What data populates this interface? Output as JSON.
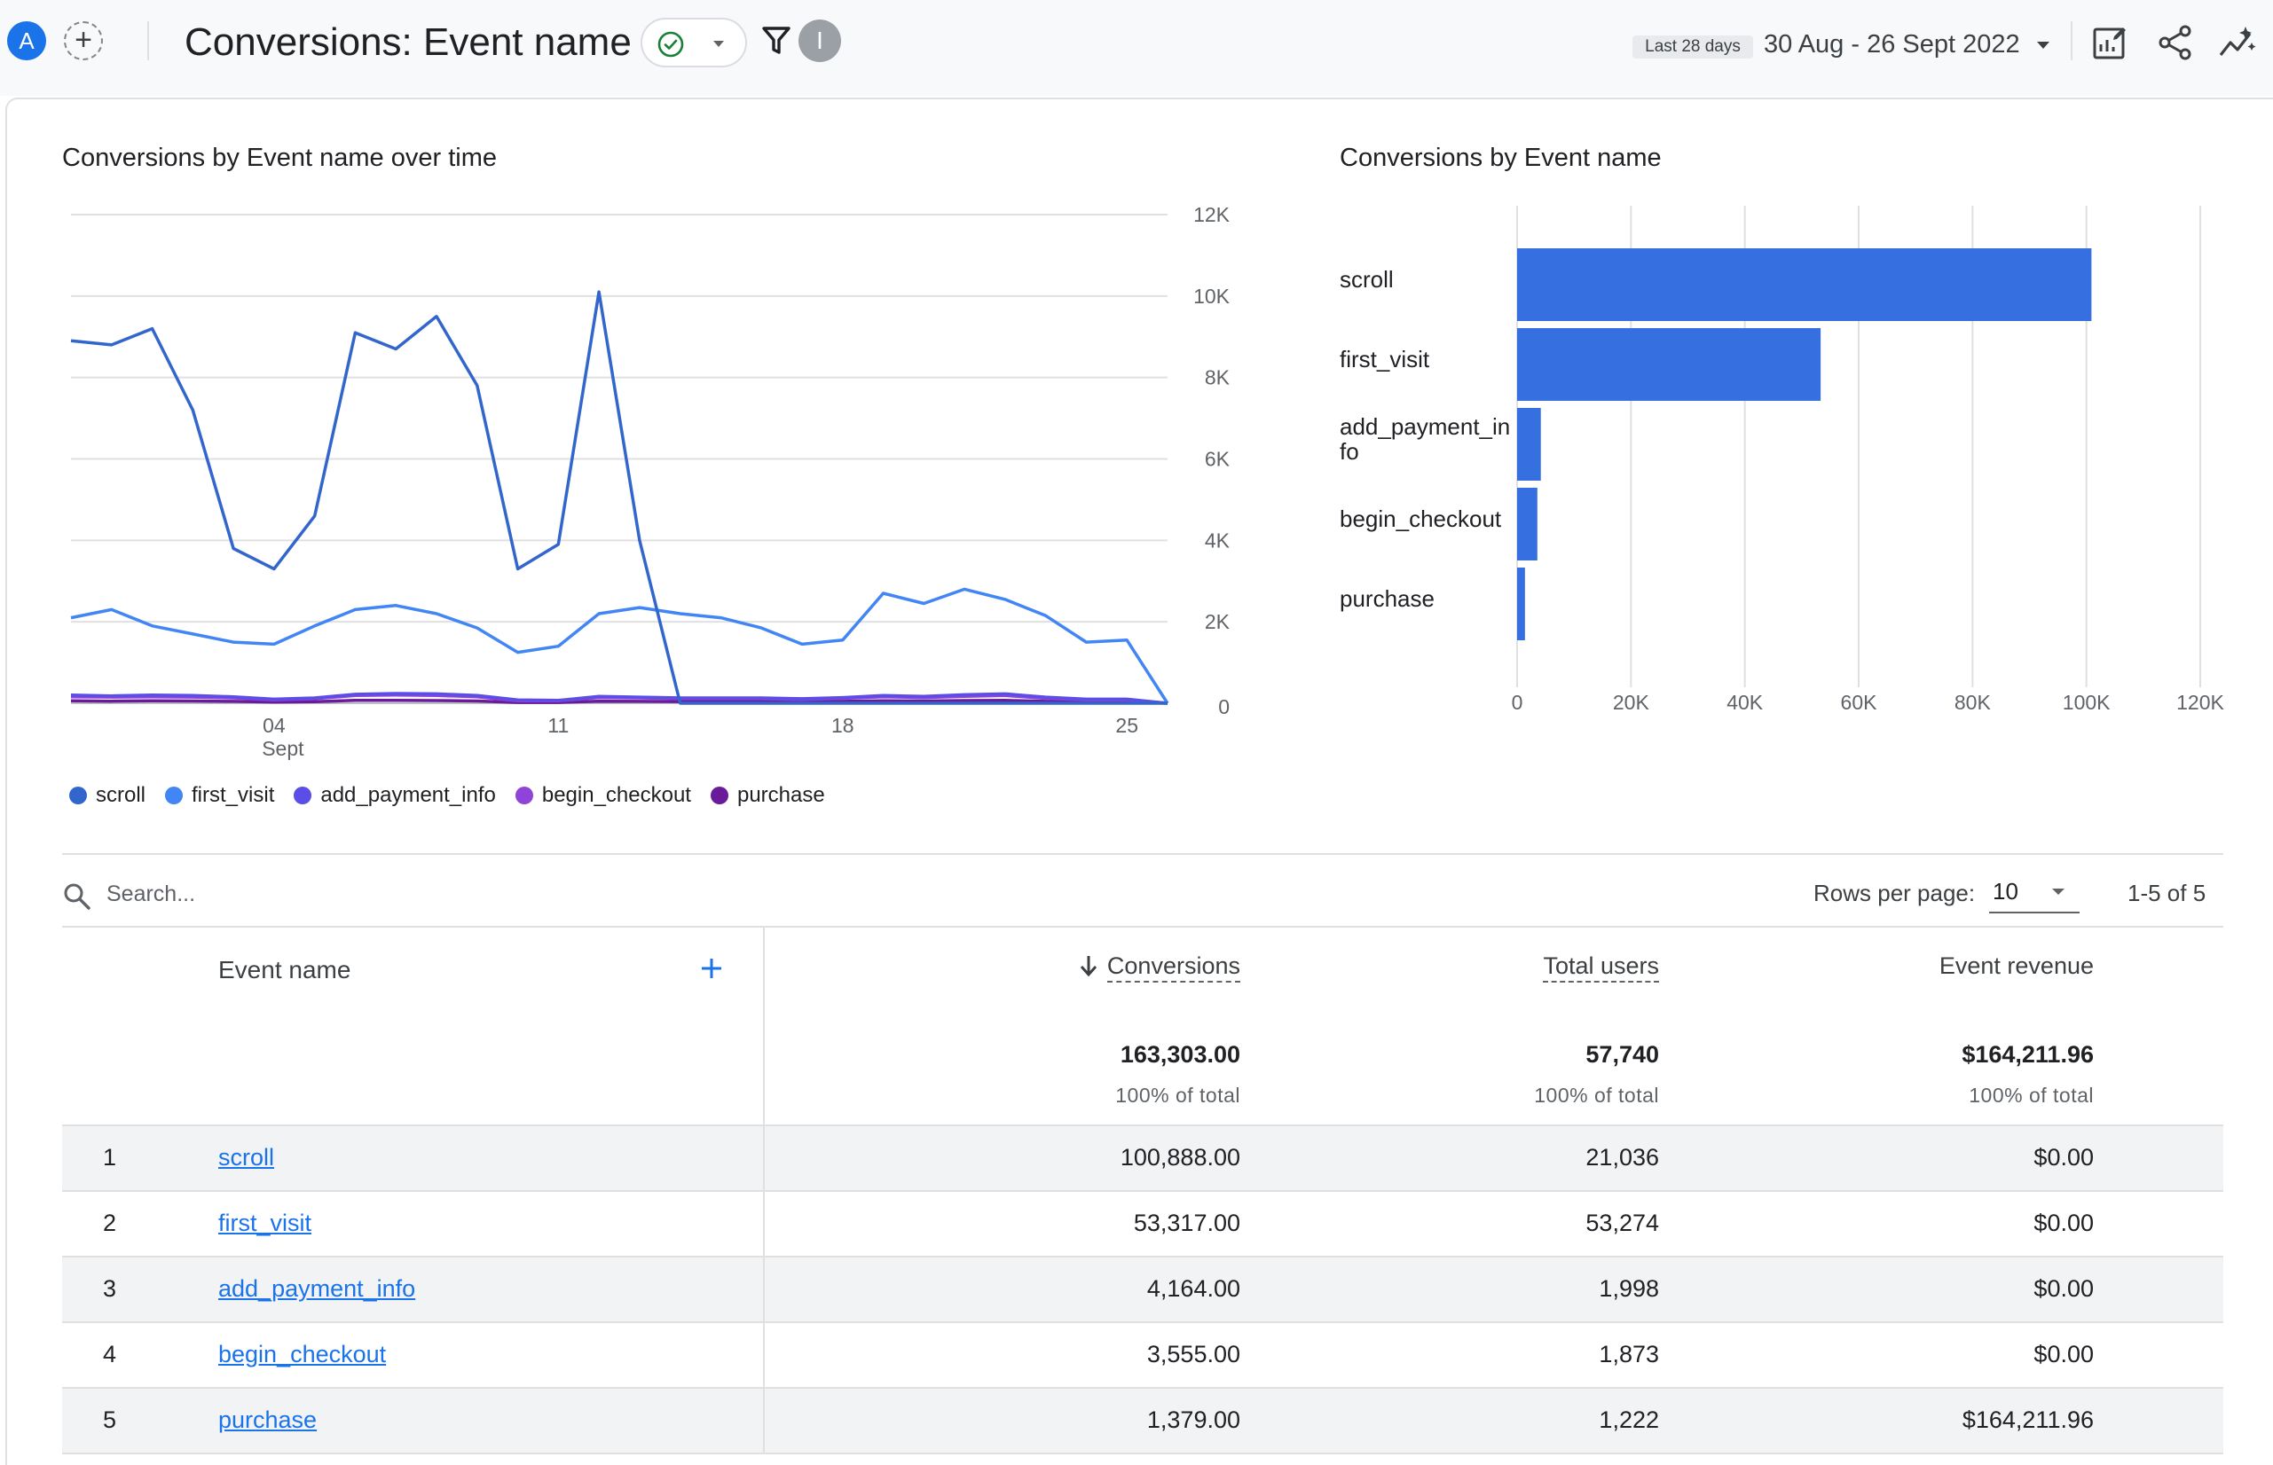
{
  "header": {
    "avatar_letter": "A",
    "compare_symbol": "+",
    "title": "Conversions: Event name",
    "filter_avatar_letter": "I",
    "date_label": "Last 28 days",
    "date_range": "30 Aug - 26 Sept 2022",
    "icons": [
      "check-circle-icon",
      "caret-down-icon",
      "filter-icon",
      "edit-report-icon",
      "share-icon",
      "insights-icon"
    ]
  },
  "line_chart": {
    "title": "Conversions by Event name over time",
    "y_ticks": [
      "12K",
      "10K",
      "8K",
      "6K",
      "4K",
      "2K",
      "0"
    ],
    "x_ticks": [
      "04",
      "11",
      "18",
      "25"
    ],
    "x_sub": "Sept",
    "legend": [
      "scroll",
      "first_visit",
      "add_payment_info",
      "begin_checkout",
      "purchase"
    ]
  },
  "bar_chart": {
    "title": "Conversions by Event name",
    "x_ticks": [
      "0",
      "20K",
      "40K",
      "60K",
      "80K",
      "100K",
      "120K"
    ],
    "category_labels": [
      [
        "scroll"
      ],
      [
        "first_visit"
      ],
      [
        "add_payment_in",
        "fo"
      ],
      [
        "begin_checkout"
      ],
      [
        "purchase"
      ]
    ]
  },
  "chart_data": [
    {
      "type": "line",
      "title": "Conversions by Event name over time",
      "x": [
        "30 Aug",
        "31 Aug",
        "01 Sept",
        "02 Sept",
        "03 Sept",
        "04 Sept",
        "05 Sept",
        "06 Sept",
        "07 Sept",
        "08 Sept",
        "09 Sept",
        "10 Sept",
        "11 Sept",
        "12 Sept",
        "13 Sept",
        "14 Sept",
        "15 Sept",
        "16 Sept",
        "17 Sept",
        "18 Sept",
        "19 Sept",
        "20 Sept",
        "21 Sept",
        "22 Sept",
        "23 Sept",
        "24 Sept",
        "25 Sept",
        "26 Sept"
      ],
      "ylim": [
        0,
        12000
      ],
      "series": [
        {
          "name": "scroll",
          "color": "#3366cc",
          "values": [
            8900,
            8800,
            9200,
            7200,
            3800,
            3300,
            4600,
            9100,
            8700,
            9500,
            7800,
            3300,
            3900,
            10100,
            4000,
            0,
            0,
            0,
            0,
            0,
            0,
            0,
            0,
            0,
            0,
            0,
            0,
            0
          ]
        },
        {
          "name": "first_visit",
          "color": "#4285f4",
          "values": [
            2100,
            2300,
            1900,
            1700,
            1500,
            1450,
            1900,
            2300,
            2400,
            2200,
            1850,
            1250,
            1400,
            2200,
            2350,
            2200,
            2100,
            1850,
            1450,
            1550,
            2700,
            2450,
            2800,
            2550,
            2150,
            1500,
            1550,
            0
          ]
        },
        {
          "name": "add_payment_info",
          "color": "#5b4de8",
          "values": [
            200,
            180,
            200,
            190,
            160,
            100,
            130,
            220,
            240,
            230,
            190,
            80,
            70,
            170,
            150,
            130,
            130,
            130,
            110,
            140,
            190,
            170,
            210,
            230,
            150,
            100,
            100,
            0
          ]
        },
        {
          "name": "begin_checkout",
          "color": "#8e44d8",
          "values": [
            160,
            150,
            160,
            150,
            130,
            80,
            110,
            190,
            200,
            190,
            160,
            60,
            60,
            140,
            130,
            110,
            110,
            110,
            90,
            120,
            160,
            140,
            170,
            190,
            120,
            80,
            80,
            0
          ]
        },
        {
          "name": "purchase",
          "color": "#6a1b9a",
          "values": [
            60,
            50,
            60,
            55,
            45,
            30,
            40,
            70,
            70,
            65,
            55,
            20,
            20,
            50,
            45,
            40,
            40,
            40,
            35,
            45,
            60,
            55,
            65,
            70,
            45,
            30,
            30,
            0
          ]
        }
      ]
    },
    {
      "type": "bar",
      "orientation": "horizontal",
      "title": "Conversions by Event name",
      "categories": [
        "scroll",
        "first_visit",
        "add_payment_info",
        "begin_checkout",
        "purchase"
      ],
      "values": [
        100888,
        53317,
        4164,
        3555,
        1379
      ],
      "xlim": [
        0,
        120000
      ],
      "color": "#3670e0"
    }
  ],
  "table": {
    "search_placeholder": "Search...",
    "rows_per_page_label": "Rows per page:",
    "rows_per_page_value": "10",
    "pager_text": "1-5 of 5",
    "col_event": "Event name",
    "col_conversions": "Conversions",
    "col_users": "Total users",
    "col_revenue": "Event revenue",
    "totals": {
      "conversions": "163,303.00",
      "users": "57,740",
      "revenue": "$164,211.96",
      "pct": "100% of total"
    },
    "rows": [
      {
        "idx": "1",
        "name": "scroll",
        "conversions": "100,888.00",
        "users": "21,036",
        "revenue": "$0.00"
      },
      {
        "idx": "2",
        "name": "first_visit",
        "conversions": "53,317.00",
        "users": "53,274",
        "revenue": "$0.00"
      },
      {
        "idx": "3",
        "name": "add_payment_info",
        "conversions": "4,164.00",
        "users": "1,998",
        "revenue": "$0.00"
      },
      {
        "idx": "4",
        "name": "begin_checkout",
        "conversions": "3,555.00",
        "users": "1,873",
        "revenue": "$0.00"
      },
      {
        "idx": "5",
        "name": "purchase",
        "conversions": "1,379.00",
        "users": "1,222",
        "revenue": "$164,211.96"
      }
    ]
  }
}
